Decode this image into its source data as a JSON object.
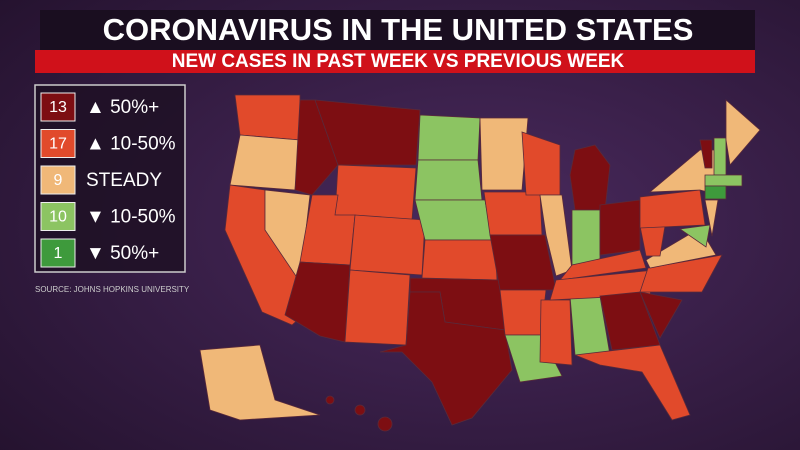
{
  "header": {
    "title": "CORONAVIRUS IN THE UNITED STATES",
    "subtitle": "NEW CASES IN PAST WEEK VS PREVIOUS WEEK"
  },
  "legend": {
    "items": [
      {
        "count": "13",
        "label": "▲ 50%+",
        "color": "#7d0e12"
      },
      {
        "count": "17",
        "label": "▲ 10-50%",
        "color": "#e14a2b"
      },
      {
        "count": "9",
        "label": "STEADY",
        "color": "#f0b878"
      },
      {
        "count": "10",
        "label": "▼ 10-50%",
        "color": "#8cc462"
      },
      {
        "count": "1",
        "label": "▼ 50%+",
        "color": "#3e9a3c"
      }
    ]
  },
  "source": "SOURCE: JOHNS HOPKINS UNIVERSITY"
}
